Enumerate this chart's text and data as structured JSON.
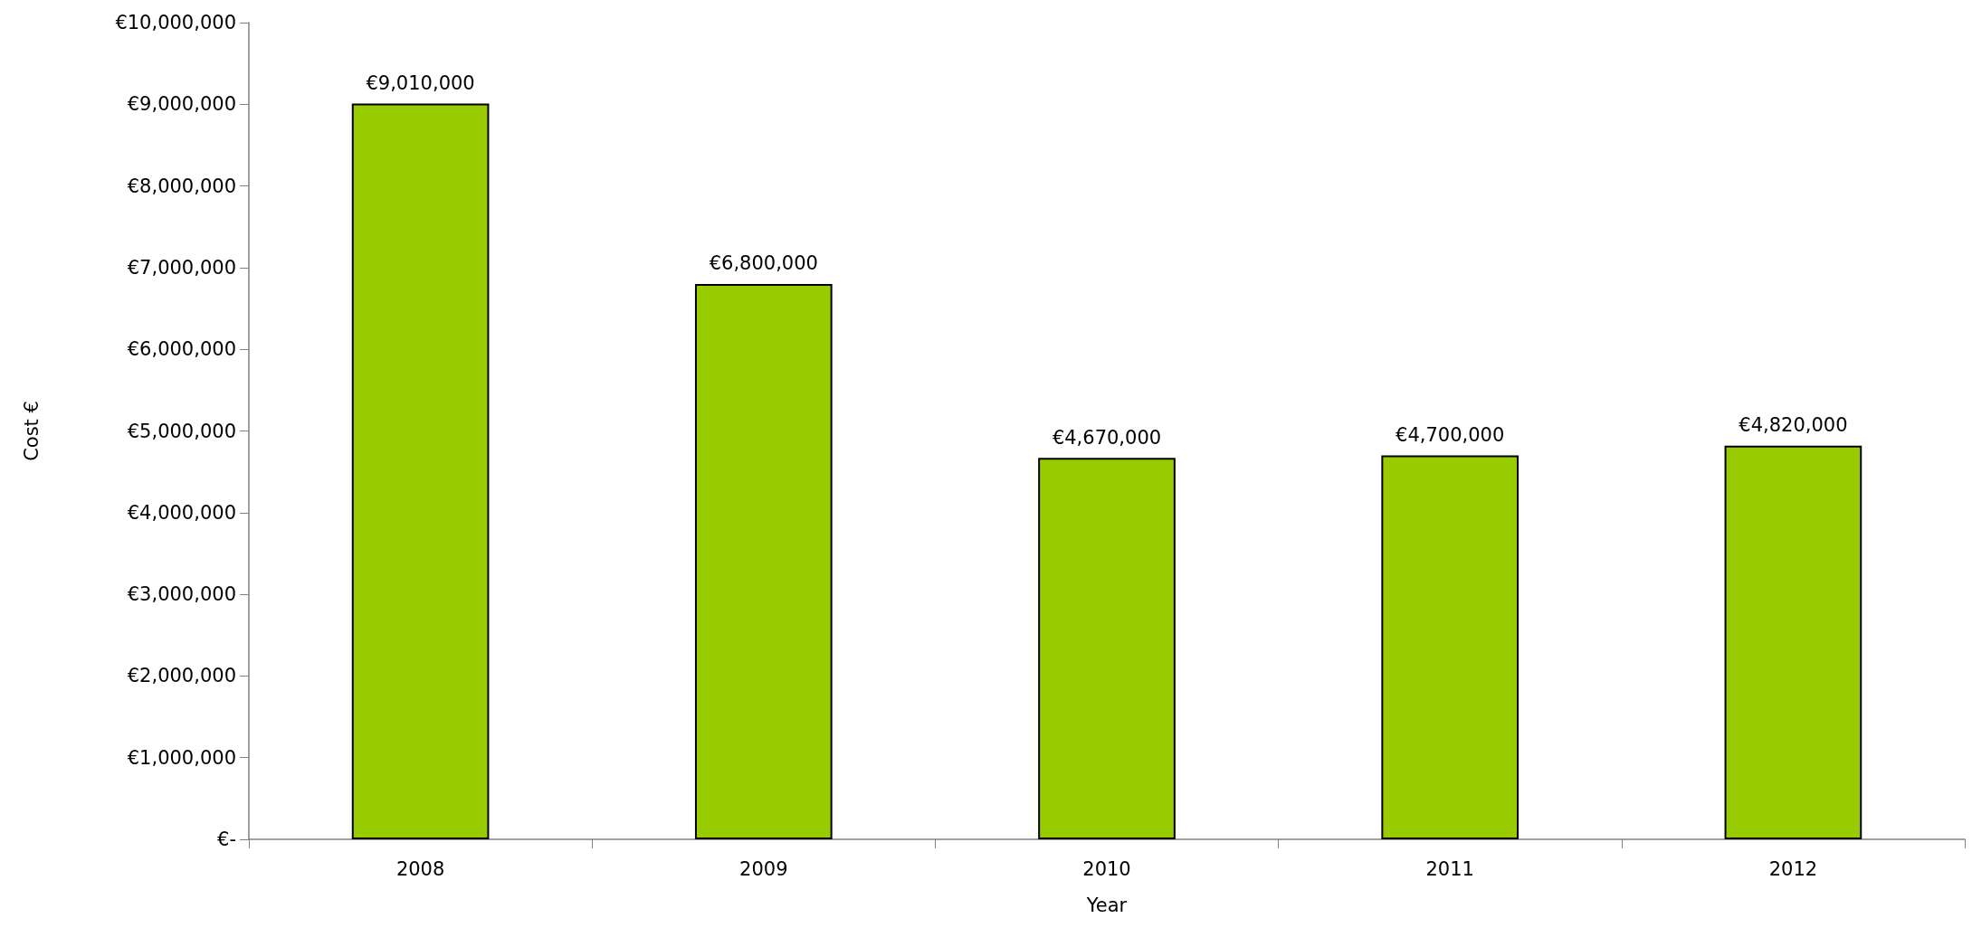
{
  "chart_data": {
    "type": "bar",
    "xlabel": "Year",
    "ylabel": "Cost €",
    "categories": [
      "2008",
      "2009",
      "2010",
      "2011",
      "2012"
    ],
    "values": [
      9010000,
      6800000,
      4670000,
      4700000,
      4820000
    ],
    "value_labels": [
      "€9,010,000",
      "€6,800,000",
      "€4,670,000",
      "€4,700,000",
      "€4,820,000"
    ],
    "color": "#99cc00",
    "ylim": [
      0,
      10000000
    ],
    "yticks": [
      {
        "value": 0,
        "label": "€-"
      },
      {
        "value": 1000000,
        "label": "€1,000,000"
      },
      {
        "value": 2000000,
        "label": "€2,000,000"
      },
      {
        "value": 3000000,
        "label": "€3,000,000"
      },
      {
        "value": 4000000,
        "label": "€4,000,000"
      },
      {
        "value": 5000000,
        "label": "€5,000,000"
      },
      {
        "value": 6000000,
        "label": "€6,000,000"
      },
      {
        "value": 7000000,
        "label": "€7,000,000"
      },
      {
        "value": 8000000,
        "label": "€8,000,000"
      },
      {
        "value": 9000000,
        "label": "€9,000,000"
      },
      {
        "value": 10000000,
        "label": "€10,000,000"
      }
    ],
    "grid": false
  }
}
